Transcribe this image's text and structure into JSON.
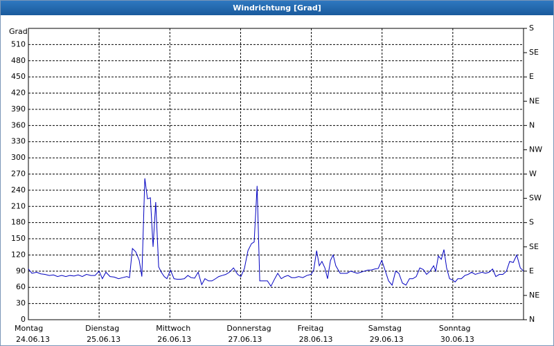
{
  "window_title": "Windrichtung [Grad]",
  "chart_data": {
    "type": "line",
    "ylabel": "Grad",
    "x": [
      0,
      1.2,
      2.8,
      4.2,
      5.6,
      7.1,
      8.5,
      9.9,
      11.3,
      12.7,
      14.1,
      15.5,
      16.9,
      18.3,
      19.7,
      21.2,
      22.6,
      24,
      25.1,
      26.3,
      27.7,
      29.1,
      30.6,
      32,
      33.4,
      34.3,
      35.3,
      36.4,
      37.6,
      38.5,
      39.5,
      40.4,
      41.4,
      42.3,
      43.2,
      44.2,
      45.1,
      46.1,
      47,
      48.2,
      49.4,
      50.5,
      51.7,
      52.9,
      54.1,
      55.2,
      56.4,
      57.6,
      58.8,
      59.9,
      61.1,
      62.3,
      63.5,
      64.6,
      65.8,
      67,
      68.2,
      69.6,
      71,
      72.1,
      73.3,
      74.5,
      75.7,
      76.6,
      77.6,
      78.5,
      79.9,
      81.1,
      82.3,
      83.4,
      84.6,
      85.8,
      87,
      88.1,
      89.3,
      90.5,
      91.7,
      93.1,
      94.5,
      95.9,
      96.8,
      97.8,
      98.7,
      99.6,
      100.6,
      101.5,
      102.5,
      103.4,
      104.3,
      105.8,
      106.9,
      108.1,
      109.3,
      110.5,
      111.6,
      112.8,
      114,
      115.2,
      116.3,
      117.5,
      118.7,
      119.9,
      121,
      122.2,
      123.4,
      124.6,
      125.7,
      126.9,
      128.1,
      129.3,
      130.4,
      131.6,
      132.8,
      134,
      135.1,
      136.3,
      137.5,
      138.2,
      139.1,
      140.1,
      141,
      141.9,
      142.9,
      143.8,
      144.8,
      145.7,
      146.9,
      148.1,
      149.2,
      150.4,
      151.6,
      152.8,
      153.9,
      155.1,
      156.3,
      157.5,
      158.6,
      159.8,
      161,
      162.2,
      163.3,
      164.5,
      165.7,
      166.9,
      168
    ],
    "series": [
      {
        "name": "Windrichtung",
        "color": "#0000c0",
        "values": [
          94,
          86,
          88,
          85,
          84,
          82,
          83,
          80,
          82,
          80,
          82,
          81,
          83,
          80,
          84,
          82,
          82,
          90,
          76,
          88,
          80,
          79,
          76,
          78,
          80,
          78,
          132,
          126,
          110,
          80,
          262,
          224,
          226,
          135,
          218,
          98,
          88,
          80,
          76,
          92,
          76,
          75,
          75,
          76,
          82,
          78,
          77,
          88,
          65,
          76,
          72,
          72,
          76,
          80,
          82,
          84,
          88,
          96,
          84,
          80,
          95,
          128,
          141,
          144,
          248,
          72,
          72,
          72,
          62,
          74,
          86,
          76,
          80,
          82,
          78,
          78,
          80,
          78,
          82,
          84,
          92,
          128,
          100,
          108,
          96,
          76,
          110,
          120,
          100,
          86,
          86,
          86,
          90,
          88,
          86,
          88,
          90,
          92,
          92,
          94,
          95,
          110,
          92,
          72,
          64,
          90,
          86,
          68,
          64,
          76,
          76,
          80,
          96,
          93,
          84,
          90,
          100,
          90,
          118,
          112,
          130,
          96,
          76,
          74,
          70,
          76,
          76,
          82,
          84,
          88,
          84,
          86,
          88,
          86,
          88,
          94,
          80,
          84,
          84,
          90,
          108,
          106,
          120,
          96,
          90
        ]
      }
    ],
    "xlim": [
      0,
      168
    ],
    "xticks": [
      {
        "value": 0,
        "label": "Montag",
        "date": "24.06.13"
      },
      {
        "value": 24,
        "label": "Dienstag",
        "date": "25.06.13"
      },
      {
        "value": 48,
        "label": "Mittwoch",
        "date": "26.06.13"
      },
      {
        "value": 72,
        "label": "Donnerstag",
        "date": "27.06.13"
      },
      {
        "value": 96,
        "label": "Freitag",
        "date": "28.06.13"
      },
      {
        "value": 120,
        "label": "Samstag",
        "date": "29.06.13"
      },
      {
        "value": 144,
        "label": "Sonntag",
        "date": "30.06.13"
      }
    ],
    "ylim": [
      0,
      540
    ],
    "yticks": [
      0,
      30,
      60,
      90,
      120,
      150,
      180,
      210,
      240,
      270,
      300,
      330,
      360,
      390,
      420,
      450,
      480,
      510
    ],
    "y2lim": [
      0,
      540
    ],
    "y2ticks": [
      {
        "value": 0,
        "label": "N"
      },
      {
        "value": 45,
        "label": "NE"
      },
      {
        "value": 90,
        "label": "E"
      },
      {
        "value": 135,
        "label": "SE"
      },
      {
        "value": 180,
        "label": "S"
      },
      {
        "value": 225,
        "label": "SW"
      },
      {
        "value": 270,
        "label": "W"
      },
      {
        "value": 315,
        "label": "NW"
      },
      {
        "value": 360,
        "label": "N"
      },
      {
        "value": 405,
        "label": "NE"
      },
      {
        "value": 450,
        "label": "E"
      },
      {
        "value": 495,
        "label": "SE"
      },
      {
        "value": 540,
        "label": "S"
      }
    ],
    "grid": true
  }
}
